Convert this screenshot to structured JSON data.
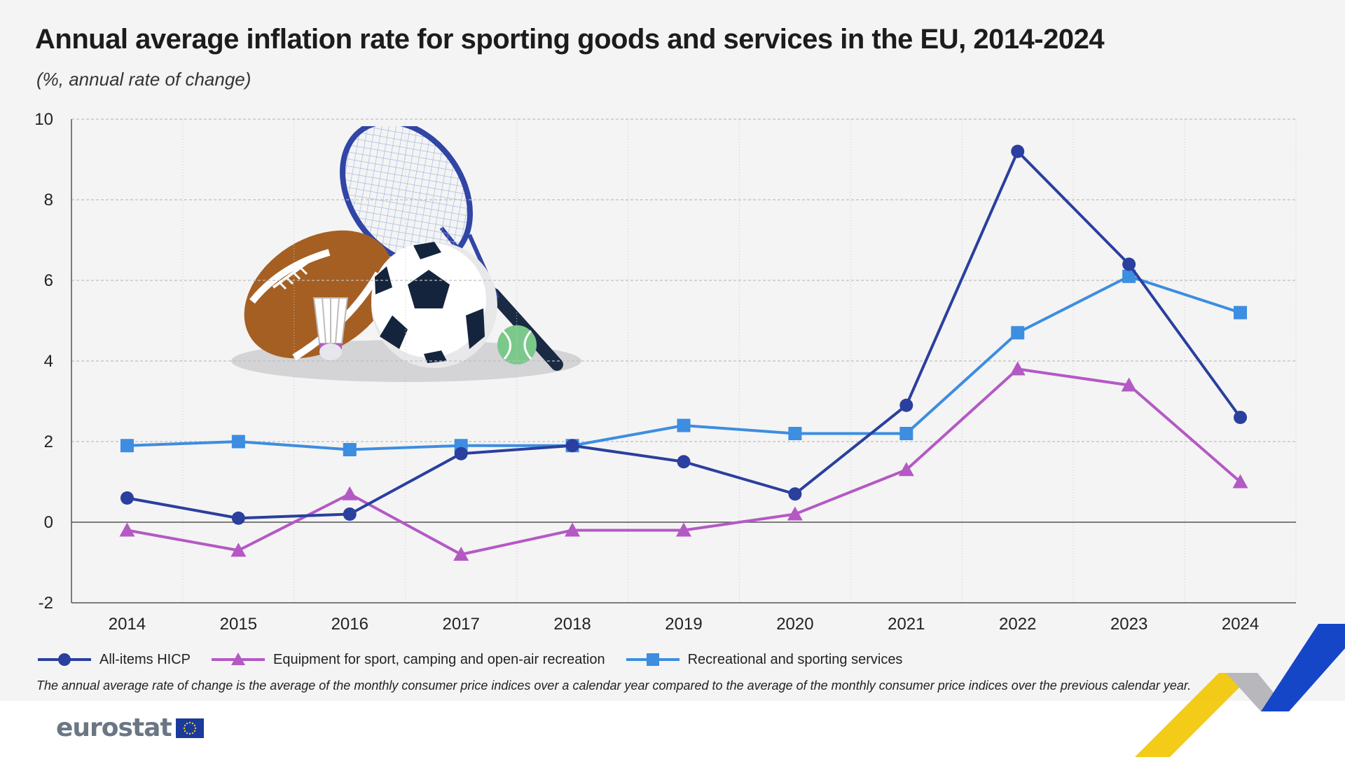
{
  "header": {
    "title": "Annual average inflation rate for sporting goods and services in the EU, 2014-2024",
    "subtitle": "(%, annual rate of change)"
  },
  "chart_data": {
    "type": "line",
    "x": [
      "2014",
      "2015",
      "2016",
      "2017",
      "2018",
      "2019",
      "2020",
      "2021",
      "2022",
      "2023",
      "2024"
    ],
    "series": [
      {
        "name": "All-items HICP",
        "color": "#2a3f9e",
        "marker": "circle",
        "values": [
          0.6,
          0.1,
          0.2,
          1.7,
          1.9,
          1.5,
          0.7,
          2.9,
          9.2,
          6.4,
          2.6
        ]
      },
      {
        "name": "Equipment for sport, camping and open-air recreation",
        "color": "#b459c4",
        "marker": "triangle",
        "values": [
          -0.2,
          -0.7,
          0.7,
          -0.8,
          -0.2,
          -0.2,
          0.2,
          1.3,
          3.8,
          3.4,
          1.0
        ]
      },
      {
        "name": "Recreational and sporting services",
        "color": "#3d8de0",
        "marker": "square",
        "values": [
          1.9,
          2.0,
          1.8,
          1.9,
          1.9,
          2.4,
          2.2,
          2.2,
          4.7,
          6.1,
          5.2
        ]
      }
    ],
    "yticks": [
      "10",
      "8",
      "6",
      "4",
      "2",
      "0",
      "-2"
    ],
    "ylim": [
      -2,
      10
    ],
    "grid": "dashed horizontal, dotted vertical",
    "legend": "bottom"
  },
  "footnote": "The annual average rate of change is the average of the monthly consumer price indices over a calendar year compared to the average of the monthly consumer price indices over the previous calendar year.",
  "branding": {
    "logo": "eurostat",
    "flag_icon": "eu-flag-icon",
    "decor_icon": "sports-equipment-illustration"
  }
}
